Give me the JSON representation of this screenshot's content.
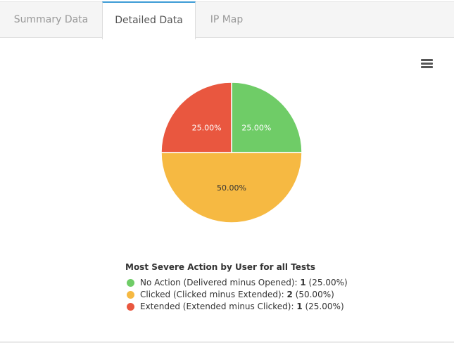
{
  "tabs": [
    {
      "label": "Summary Data",
      "active": false
    },
    {
      "label": "Detailed Data",
      "active": true
    },
    {
      "label": "IP Map",
      "active": false
    }
  ],
  "menu_icon": "hamburger-menu-icon",
  "chart_data": {
    "type": "pie",
    "title": "Most Severe Action by User for all Tests",
    "legend_placement": "bottom",
    "slices": [
      {
        "name": "No Action (Delivered minus Opened)",
        "value": 1,
        "percent": "25.00%",
        "color": "#6fcc67"
      },
      {
        "name": "Clicked (Clicked minus Extended)",
        "value": 2,
        "percent": "50.00%",
        "color": "#f6b942"
      },
      {
        "name": "Extended (Extended minus Clicked)",
        "value": 1,
        "percent": "25.00%",
        "color": "#e9573f"
      }
    ]
  }
}
